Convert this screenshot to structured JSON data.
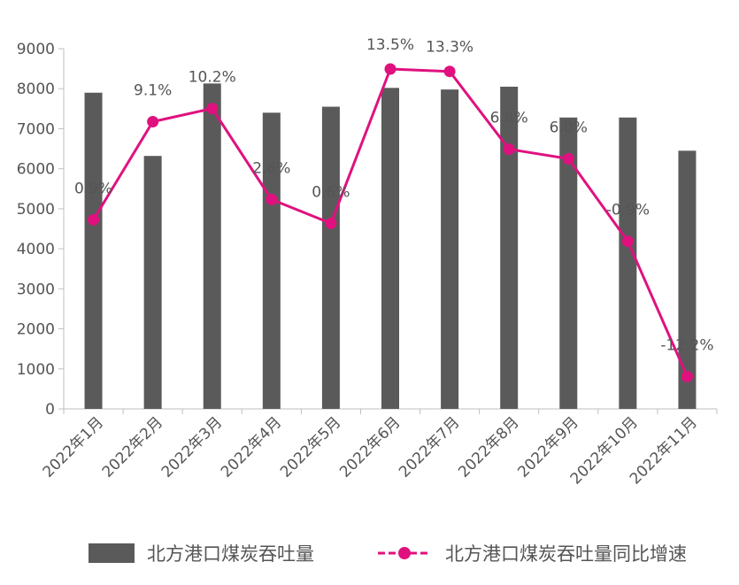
{
  "chart_data": {
    "type": "bar+line",
    "categories": [
      "2022年1月",
      "2022年2月",
      "2022年3月",
      "2022年4月",
      "2022年5月",
      "2022年6月",
      "2022年7月",
      "2022年8月",
      "2022年9月",
      "2022年10月",
      "2022年11月"
    ],
    "series": [
      {
        "name": "北方港口煤炭吞吐量",
        "type": "bar",
        "values": [
          7900,
          6320,
          8130,
          7400,
          7550,
          8020,
          7980,
          8050,
          7280,
          7280,
          6450
        ]
      },
      {
        "name": "北方港口煤炭吞吐量同比增速",
        "type": "line",
        "values": [
          0.9,
          9.1,
          10.2,
          2.6,
          0.6,
          13.5,
          13.3,
          6.8,
          6.0,
          -0.9,
          -12.2
        ],
        "labels": [
          "0.9%",
          "9.1%",
          "10.2%",
          "2.6%",
          "0.6%",
          "13.5%",
          "13.3%",
          "6.8%",
          "6.0%",
          "-0.9%",
          "-12.2%"
        ]
      }
    ],
    "y_ticks": [
      "0",
      "1000",
      "2000",
      "3000",
      "4000",
      "5000",
      "6000",
      "7000",
      "8000",
      "9000"
    ],
    "ylim": [
      0,
      9000
    ],
    "y2lim": [
      -14.9,
      15.2
    ],
    "grid": false,
    "legend_position": "bottom",
    "colors": {
      "bar": "#5a5a5a",
      "line": "#e0117f",
      "axis": "#bfbfbf",
      "text": "#555555"
    }
  }
}
